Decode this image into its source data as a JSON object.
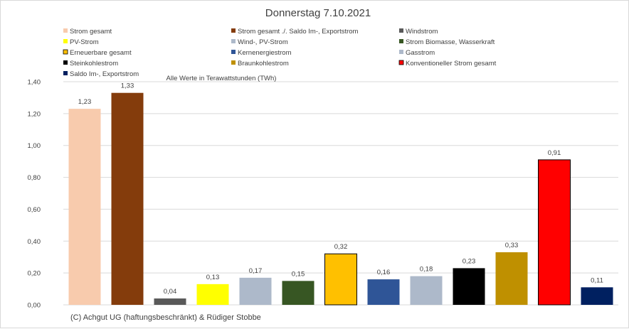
{
  "chart_data": {
    "type": "bar",
    "title": "Donnerstag 7.10.2021",
    "xlabel": "",
    "ylabel": "",
    "note": "Alle Werte in Terawattstunden (TWh)",
    "ylim": [
      0,
      1.4
    ],
    "ytick_step": 0.2,
    "ytick_labels": [
      "0,00",
      "0,20",
      "0,40",
      "0,60",
      "0,80",
      "1,00",
      "1,20",
      "1,40"
    ],
    "grid": true,
    "legend_position": "top",
    "series": [
      {
        "name": "Strom gesamt",
        "value": 1.23,
        "label": "1,23",
        "color": "#f8cbad",
        "outline": ""
      },
      {
        "name": "Strom gesamt ./. Saldo Im-, Exportstrom",
        "value": 1.33,
        "label": "1,33",
        "color": "#843c0c",
        "outline": ""
      },
      {
        "name": "Windstrom",
        "value": 0.04,
        "label": "0,04",
        "color": "#595959",
        "outline": ""
      },
      {
        "name": "PV-Strom",
        "value": 0.13,
        "label": "0,13",
        "color": "#ffff00",
        "outline": ""
      },
      {
        "name": "Wind-, PV-Strom",
        "value": 0.17,
        "label": "0,17",
        "color": "#adb9ca",
        "outline": ""
      },
      {
        "name": "Strom Biomasse, Wasserkraft",
        "value": 0.15,
        "label": "0,15",
        "color": "#375623",
        "outline": ""
      },
      {
        "name": "Erneuerbare gesamt",
        "value": 0.32,
        "label": "0,32",
        "color": "#ffc000",
        "outline": "#000000"
      },
      {
        "name": "Kernenergiestrom",
        "value": 0.16,
        "label": "0,16",
        "color": "#2f5597",
        "outline": ""
      },
      {
        "name": "Gasstrom",
        "value": 0.18,
        "label": "0,18",
        "color": "#adb9ca",
        "outline": ""
      },
      {
        "name": "Steinkohlestrom",
        "value": 0.23,
        "label": "0,23",
        "color": "#000000",
        "outline": ""
      },
      {
        "name": "Braunkohlestrom",
        "value": 0.33,
        "label": "0,33",
        "color": "#bf9000",
        "outline": ""
      },
      {
        "name": "Konventioneller Strom gesamt",
        "value": 0.91,
        "label": "0,91",
        "color": "#ff0000",
        "outline": "#000000"
      },
      {
        "name": "Saldo Im-, Exportstrom",
        "value": 0.11,
        "label": "0,11",
        "color": "#002060",
        "outline": ""
      }
    ]
  },
  "footer": {
    "credit": "(C) Achgut UG (haftungsbeschränkt) & Rüdiger Stobbe"
  }
}
